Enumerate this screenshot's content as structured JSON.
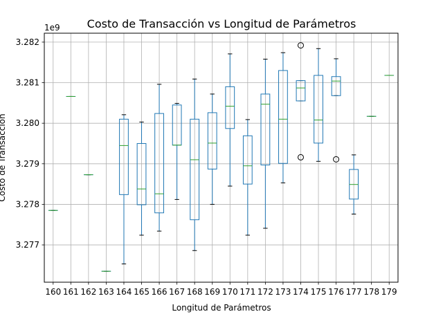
{
  "chart_data": {
    "type": "box",
    "title": "Costo de Transacción vs Longitud de Parámetros",
    "xlabel": "Longitud de Parámetros",
    "ylabel": "Costo de Transacción",
    "y_scale_label": "1e9",
    "y_scale": 1000000000,
    "ylim": [
      3.27608,
      3.28222
    ],
    "yticks": [
      "3.277",
      "3.278",
      "3.279",
      "3.280",
      "3.281",
      "3.282"
    ],
    "grid": true,
    "colors": {
      "box": "#1f77b4",
      "median": "#2ca02c",
      "grid": "#b0b0b0"
    },
    "categories": [
      "160",
      "161",
      "162",
      "163",
      "164",
      "165",
      "166",
      "167",
      "168",
      "169",
      "170",
      "171",
      "172",
      "173",
      "174",
      "175",
      "176",
      "177",
      "178",
      "179"
    ],
    "boxes": [
      {
        "low": 3.27785,
        "q1": 3.27785,
        "median": 3.27785,
        "q3": 3.27785,
        "high": 3.27785,
        "fliers": []
      },
      {
        "low": 3.28066,
        "q1": 3.28066,
        "median": 3.28066,
        "q3": 3.28066,
        "high": 3.28066,
        "fliers": []
      },
      {
        "low": 3.27873,
        "q1": 3.27873,
        "median": 3.27873,
        "q3": 3.27873,
        "high": 3.27873,
        "fliers": []
      },
      {
        "low": 3.27635,
        "q1": 3.27635,
        "median": 3.27635,
        "q3": 3.27635,
        "high": 3.27635,
        "fliers": []
      },
      {
        "low": 3.27653,
        "q1": 3.27824,
        "median": 3.27945,
        "q3": 3.2801,
        "high": 3.28021,
        "fliers": []
      },
      {
        "low": 3.27724,
        "q1": 3.27799,
        "median": 3.27838,
        "q3": 3.2795,
        "high": 3.28003,
        "fliers": []
      },
      {
        "low": 3.27734,
        "q1": 3.27779,
        "median": 3.27826,
        "q3": 3.28024,
        "high": 3.28096,
        "fliers": []
      },
      {
        "low": 3.27812,
        "q1": 3.27946,
        "median": 3.27946,
        "q3": 3.28045,
        "high": 3.28049,
        "fliers": []
      },
      {
        "low": 3.27686,
        "q1": 3.27762,
        "median": 3.2791,
        "q3": 3.2801,
        "high": 3.28109,
        "fliers": []
      },
      {
        "low": 3.278,
        "q1": 3.27887,
        "median": 3.27951,
        "q3": 3.28026,
        "high": 3.28072,
        "fliers": []
      },
      {
        "low": 3.27845,
        "q1": 3.27987,
        "median": 3.28042,
        "q3": 3.2809,
        "high": 3.28171,
        "fliers": []
      },
      {
        "low": 3.27724,
        "q1": 3.2785,
        "median": 3.27895,
        "q3": 3.27969,
        "high": 3.28009,
        "fliers": []
      },
      {
        "low": 3.27741,
        "q1": 3.27897,
        "median": 3.28047,
        "q3": 3.28072,
        "high": 3.28158,
        "fliers": []
      },
      {
        "low": 3.27853,
        "q1": 3.27901,
        "median": 3.2801,
        "q3": 3.2813,
        "high": 3.28174,
        "fliers": []
      },
      {
        "low": 3.28055,
        "q1": 3.28055,
        "median": 3.28087,
        "q3": 3.28105,
        "high": 3.28105,
        "fliers": [
          3.28192,
          3.27916
        ]
      },
      {
        "low": 3.27906,
        "q1": 3.27951,
        "median": 3.28008,
        "q3": 3.28118,
        "high": 3.28184,
        "fliers": []
      },
      {
        "low": 3.28068,
        "q1": 3.28068,
        "median": 3.28104,
        "q3": 3.28115,
        "high": 3.28159,
        "fliers": [
          3.27911
        ]
      },
      {
        "low": 3.27776,
        "q1": 3.27813,
        "median": 3.27849,
        "q3": 3.27886,
        "high": 3.27922,
        "fliers": []
      },
      {
        "low": 3.28017,
        "q1": 3.28017,
        "median": 3.28017,
        "q3": 3.28017,
        "high": 3.28017,
        "fliers": []
      },
      {
        "low": 3.28118,
        "q1": 3.28118,
        "median": 3.28118,
        "q3": 3.28118,
        "high": 3.28118,
        "fliers": []
      }
    ]
  }
}
